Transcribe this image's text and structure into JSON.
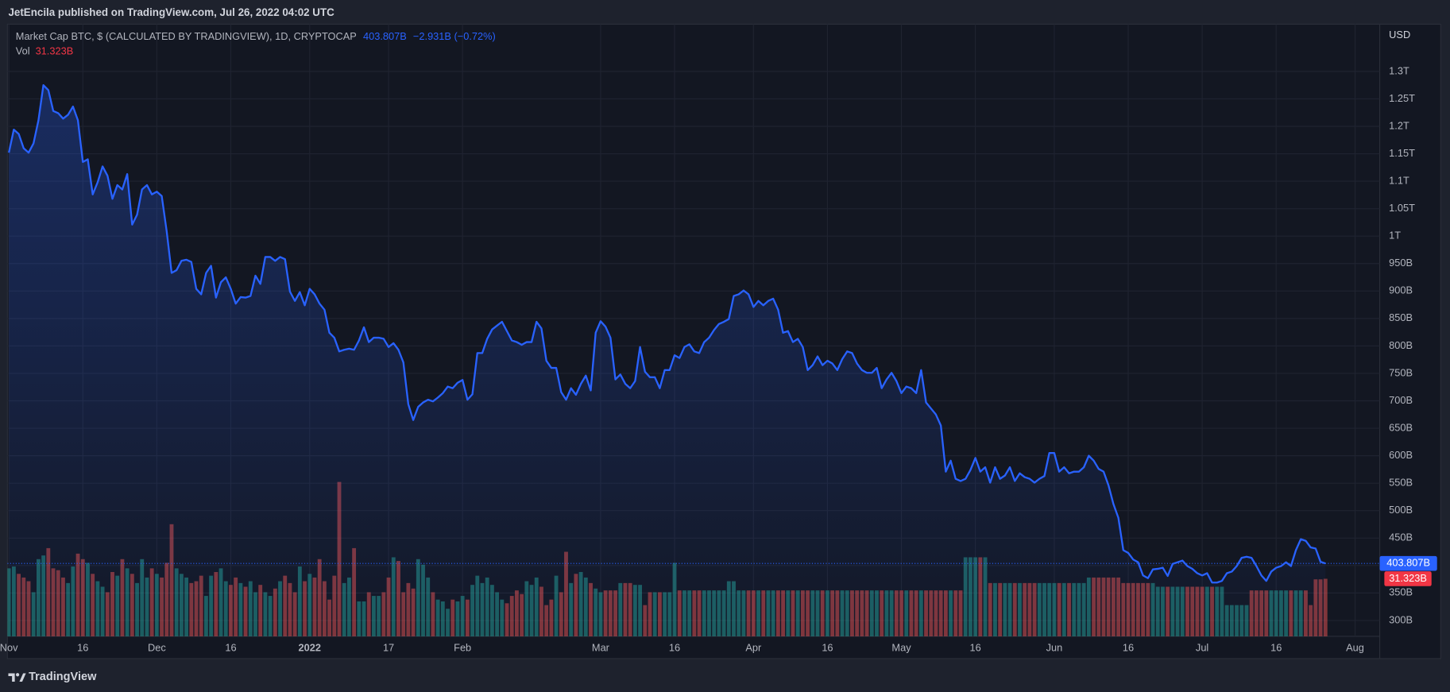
{
  "publisher": "JetEncila published on TradingView.com, Jul 26, 2022 04:02 UTC",
  "brand": "TradingView",
  "chart_data": {
    "type": "line",
    "title": "Market Cap BTC, $ (CALCULATED BY TRADINGVIEW), 1D, CRYPTOCAP",
    "price_label": "403.807B",
    "change_label": "−2.931B (−0.72%)",
    "currency": "USD",
    "color": "#2962ff",
    "grid": true,
    "xlim": [
      -0.3,
      278
    ],
    "xticks": [
      {
        "value": 0,
        "label": "Nov"
      },
      {
        "value": 15,
        "label": "16"
      },
      {
        "value": 30,
        "label": "Dec"
      },
      {
        "value": 45,
        "label": "16"
      },
      {
        "value": 61,
        "label": "2022"
      },
      {
        "value": 77,
        "label": "17"
      },
      {
        "value": 92,
        "label": "Feb"
      },
      {
        "value": 120,
        "label": "Mar"
      },
      {
        "value": 135,
        "label": "16"
      },
      {
        "value": 151,
        "label": "Apr"
      },
      {
        "value": 166,
        "label": "16"
      },
      {
        "value": 181,
        "label": "May"
      },
      {
        "value": 196,
        "label": "16"
      },
      {
        "value": 212,
        "label": "Jun"
      },
      {
        "value": 227,
        "label": "16"
      },
      {
        "value": 242,
        "label": "Jul"
      },
      {
        "value": 257,
        "label": "16"
      },
      {
        "value": 273,
        "label": "Aug"
      }
    ],
    "ylim": [
      271,
      1386
    ],
    "yticks": [
      {
        "value": 300,
        "label": "300B"
      },
      {
        "value": 350,
        "label": "350B"
      },
      {
        "value": 400,
        "label": "400B"
      },
      {
        "value": 450,
        "label": "450B"
      },
      {
        "value": 500,
        "label": "500B"
      },
      {
        "value": 550,
        "label": "550B"
      },
      {
        "value": 600,
        "label": "600B"
      },
      {
        "value": 650,
        "label": "650B"
      },
      {
        "value": 700,
        "label": "700B"
      },
      {
        "value": 750,
        "label": "750B"
      },
      {
        "value": 800,
        "label": "800B"
      },
      {
        "value": 850,
        "label": "850B"
      },
      {
        "value": 900,
        "label": "900B"
      },
      {
        "value": 950,
        "label": "950B"
      },
      {
        "value": 1000,
        "label": "1T"
      },
      {
        "value": 1050,
        "label": "1.05T"
      },
      {
        "value": 1100,
        "label": "1.1T"
      },
      {
        "value": 1150,
        "label": "1.15T"
      },
      {
        "value": 1200,
        "label": "1.2T"
      },
      {
        "value": 1250,
        "label": "1.25T"
      },
      {
        "value": 1300,
        "label": "1.3T"
      }
    ],
    "values": [
      1152,
      1194,
      1186,
      1160,
      1152,
      1169,
      1211,
      1275,
      1266,
      1228,
      1224,
      1214,
      1221,
      1236,
      1211,
      1135,
      1140,
      1076,
      1098,
      1127,
      1110,
      1068,
      1093,
      1085,
      1113,
      1021,
      1039,
      1085,
      1093,
      1076,
      1081,
      1073,
      1009,
      933,
      938,
      955,
      957,
      953,
      904,
      894,
      933,
      946,
      888,
      916,
      925,
      904,
      877,
      889,
      888,
      891,
      928,
      913,
      962,
      962,
      955,
      962,
      958,
      899,
      882,
      898,
      874,
      904,
      894,
      877,
      866,
      824,
      815,
      790,
      793,
      795,
      793,
      810,
      834,
      807,
      815,
      815,
      813,
      798,
      805,
      793,
      770,
      694,
      665,
      689,
      697,
      702,
      699,
      706,
      714,
      726,
      723,
      733,
      738,
      702,
      712,
      787,
      787,
      813,
      830,
      837,
      844,
      827,
      810,
      807,
      802,
      807,
      807,
      844,
      832,
      773,
      760,
      760,
      716,
      702,
      723,
      711,
      731,
      746,
      719,
      824,
      845,
      835,
      815,
      739,
      748,
      731,
      723,
      736,
      798,
      753,
      743,
      743,
      723,
      756,
      756,
      783,
      778,
      798,
      803,
      790,
      787,
      807,
      815,
      829,
      840,
      844,
      849,
      891,
      894,
      901,
      894,
      871,
      882,
      874,
      882,
      886,
      866,
      824,
      827,
      807,
      813,
      798,
      756,
      765,
      781,
      765,
      773,
      768,
      756,
      776,
      790,
      787,
      768,
      756,
      751,
      751,
      760,
      723,
      739,
      751,
      736,
      714,
      726,
      723,
      714,
      756,
      697,
      686,
      675,
      655,
      571,
      591,
      558,
      554,
      558,
      574,
      596,
      571,
      579,
      551,
      579,
      558,
      564,
      579,
      554,
      568,
      561,
      558,
      551,
      558,
      563,
      605,
      605,
      571,
      579,
      568,
      571,
      571,
      579,
      600,
      591,
      576,
      571,
      546,
      512,
      487,
      428,
      423,
      411,
      406,
      382,
      377,
      393,
      394,
      396,
      381,
      403,
      406,
      409,
      399,
      394,
      386,
      382,
      386,
      369,
      369,
      372,
      386,
      389,
      399,
      414,
      416,
      414,
      399,
      382,
      372,
      389,
      396,
      399,
      406,
      399,
      428,
      448,
      445,
      433,
      431,
      406.738,
      403.807
    ],
    "volume": {
      "name": "Vol",
      "value_label": "31.323B",
      "ylim": [
        0,
        333
      ],
      "up_color": "#26a69a",
      "down_color": "#ef5350",
      "values": [
        37,
        38,
        34,
        32,
        30,
        24,
        42,
        44,
        48,
        37,
        36,
        32,
        29,
        38,
        45,
        42,
        40,
        34,
        30,
        27,
        24,
        35,
        33,
        42,
        37,
        34,
        29,
        42,
        32,
        37,
        34,
        32,
        40,
        61,
        37,
        34,
        32,
        29,
        30,
        33,
        22,
        33,
        35,
        37,
        30,
        28,
        32,
        29,
        27,
        30,
        24,
        28,
        24,
        22,
        26,
        30,
        33,
        29,
        24,
        38,
        30,
        34,
        32,
        42,
        30,
        20,
        33,
        84,
        29,
        32,
        48,
        19,
        19,
        24,
        22,
        22,
        24,
        32,
        43,
        41,
        24,
        29,
        26,
        42,
        39,
        32,
        24,
        20,
        19,
        15,
        20,
        19,
        22,
        20,
        28,
        33,
        29,
        32,
        28,
        24,
        20,
        18,
        22,
        25,
        23,
        30,
        28,
        32,
        27,
        17,
        20,
        33,
        24,
        46,
        29,
        34,
        35,
        32,
        29,
        26,
        24,
        25,
        25,
        25,
        29,
        29,
        29,
        28,
        28,
        17,
        24,
        24,
        24,
        24,
        24,
        40,
        25,
        25,
        25,
        25,
        25,
        25,
        25,
        25,
        25,
        25,
        30,
        30,
        25,
        25,
        25,
        25,
        25,
        25,
        25,
        25,
        25,
        25,
        25,
        25,
        25,
        25,
        25,
        25,
        25,
        25,
        25,
        25,
        25,
        25,
        25,
        25,
        25,
        25,
        25,
        25,
        25,
        25,
        25,
        25,
        25,
        25,
        25,
        25,
        25,
        25,
        25,
        25,
        25,
        25,
        25,
        25,
        25,
        25,
        43,
        43,
        43,
        43,
        43,
        29,
        29,
        29,
        29,
        29,
        29,
        29,
        29,
        29,
        29,
        29,
        29,
        29,
        29,
        29,
        29,
        29,
        29,
        29,
        29,
        32,
        32,
        32,
        32,
        32,
        32,
        32,
        29,
        29,
        29,
        29,
        29,
        29,
        29,
        27,
        27,
        27,
        27,
        27,
        27,
        27,
        27,
        27,
        27,
        27,
        27,
        27,
        27,
        17,
        17,
        17,
        17,
        17,
        25,
        25,
        25,
        25,
        25,
        25,
        25,
        25,
        25,
        25,
        25,
        25,
        17,
        31,
        31,
        31.323
      ]
    }
  }
}
